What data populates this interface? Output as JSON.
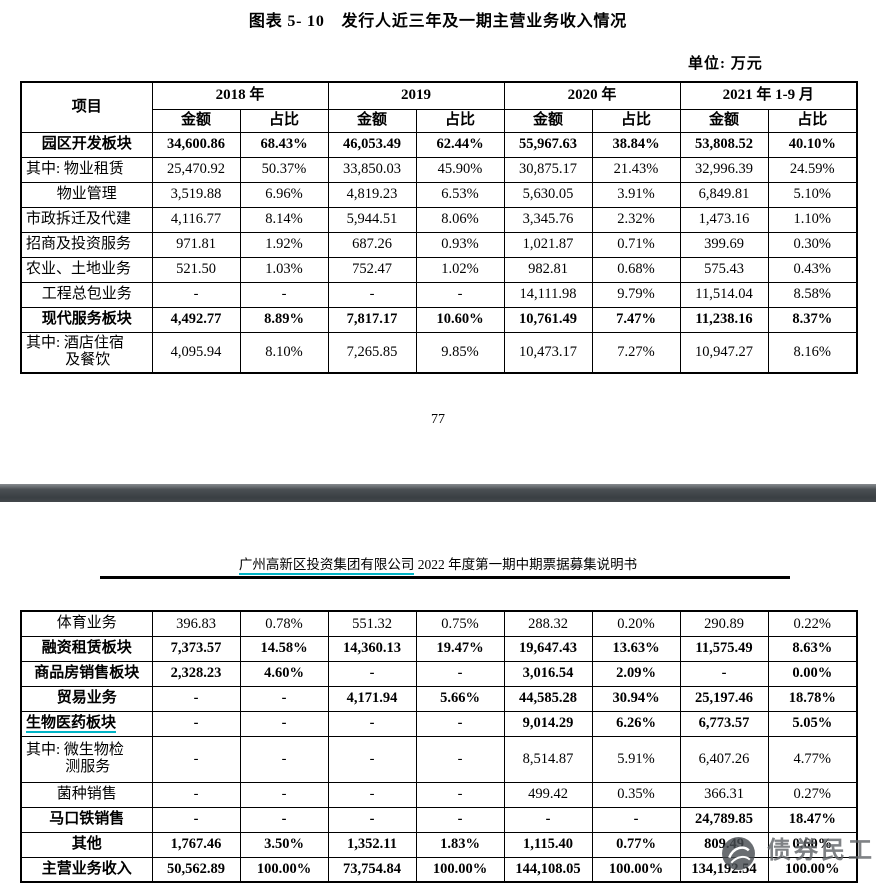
{
  "page1": {
    "title": "图表 5- 10　发行人近三年及一期主营业务收入情况",
    "unit_label": "单位: 万元",
    "page_number": "77"
  },
  "table": {
    "item_header": "项目",
    "year_headers": [
      "2018 年",
      "2019",
      "2020 年",
      "2021 年 1-9 月"
    ],
    "sub_headers": [
      "金额",
      "占比"
    ],
    "part1_rows": [
      {
        "label_lines": [
          "园区开发板块"
        ],
        "bold": true,
        "align": "center",
        "cells": [
          "34,600.86",
          "68.43%",
          "46,053.49",
          "62.44%",
          "55,967.63",
          "38.84%",
          "53,808.52",
          "40.10%"
        ]
      },
      {
        "label_lines": [
          "其中: 物业租赁"
        ],
        "bold": false,
        "align": "left",
        "cells": [
          "25,470.92",
          "50.37%",
          "33,850.03",
          "45.90%",
          "30,875.17",
          "21.43%",
          "32,996.39",
          "24.59%"
        ]
      },
      {
        "label_lines": [
          "物业管理"
        ],
        "bold": false,
        "align": "center",
        "cells": [
          "3,519.88",
          "6.96%",
          "4,819.23",
          "6.53%",
          "5,630.05",
          "3.91%",
          "6,849.81",
          "5.10%"
        ]
      },
      {
        "label_lines": [
          "市政拆迁及代建"
        ],
        "bold": false,
        "align": "left",
        "cells": [
          "4,116.77",
          "8.14%",
          "5,944.51",
          "8.06%",
          "3,345.76",
          "2.32%",
          "1,473.16",
          "1.10%"
        ]
      },
      {
        "label_lines": [
          "招商及投资服务"
        ],
        "bold": false,
        "align": "left",
        "cells": [
          "971.81",
          "1.92%",
          "687.26",
          "0.93%",
          "1,021.87",
          "0.71%",
          "399.69",
          "0.30%"
        ]
      },
      {
        "label_lines": [
          "农业、土地业务"
        ],
        "bold": false,
        "align": "left",
        "cells": [
          "521.50",
          "1.03%",
          "752.47",
          "1.02%",
          "982.81",
          "0.68%",
          "575.43",
          "0.43%"
        ]
      },
      {
        "label_lines": [
          "工程总包业务"
        ],
        "bold": false,
        "align": "center",
        "cells": [
          "-",
          "-",
          "-",
          "-",
          "14,111.98",
          "9.79%",
          "11,514.04",
          "8.58%"
        ]
      },
      {
        "label_lines": [
          "现代服务板块"
        ],
        "bold": true,
        "align": "center",
        "cells": [
          "4,492.77",
          "8.89%",
          "7,817.17",
          "10.60%",
          "10,761.49",
          "7.47%",
          "11,238.16",
          "8.37%"
        ]
      },
      {
        "label_lines": [
          "其中: 酒店住宿",
          "及餐饮"
        ],
        "bold": false,
        "align": "left",
        "tall": true,
        "cells": [
          "4,095.94",
          "8.10%",
          "7,265.85",
          "9.85%",
          "10,473.17",
          "7.27%",
          "10,947.27",
          "8.16%"
        ]
      }
    ],
    "part2_rows": [
      {
        "label_lines": [
          "体育业务"
        ],
        "bold": false,
        "align": "center",
        "cells": [
          "396.83",
          "0.78%",
          "551.32",
          "0.75%",
          "288.32",
          "0.20%",
          "290.89",
          "0.22%"
        ]
      },
      {
        "label_lines": [
          "融资租赁板块"
        ],
        "bold": true,
        "align": "center",
        "cells": [
          "7,373.57",
          "14.58%",
          "14,360.13",
          "19.47%",
          "19,647.43",
          "13.63%",
          "11,575.49",
          "8.63%"
        ]
      },
      {
        "label_lines": [
          "商品房销售板块"
        ],
        "bold": true,
        "align": "center",
        "cells": [
          "2,328.23",
          "4.60%",
          "-",
          "-",
          "3,016.54",
          "2.09%",
          "-",
          "0.00%"
        ]
      },
      {
        "label_lines": [
          "贸易业务"
        ],
        "bold": true,
        "align": "center",
        "cells": [
          "-",
          "-",
          "4,171.94",
          "5.66%",
          "44,585.28",
          "30.94%",
          "25,197.46",
          "18.78%"
        ]
      },
      {
        "label_lines": [
          "生物医药板块"
        ],
        "bold": true,
        "align": "left",
        "underline": true,
        "cells": [
          "-",
          "-",
          "-",
          "-",
          "9,014.29",
          "6.26%",
          "6,773.57",
          "5.05%"
        ]
      },
      {
        "label_lines": [
          "其中: 微生物检",
          "测服务"
        ],
        "bold": false,
        "align": "left",
        "tall": true,
        "cells": [
          "-",
          "-",
          "-",
          "-",
          "8,514.87",
          "5.91%",
          "6,407.26",
          "4.77%"
        ]
      },
      {
        "label_lines": [
          "菌种销售"
        ],
        "bold": false,
        "align": "center",
        "cells": [
          "-",
          "-",
          "-",
          "-",
          "499.42",
          "0.35%",
          "366.31",
          "0.27%"
        ]
      },
      {
        "label_lines": [
          "马口铁销售"
        ],
        "bold": true,
        "align": "center",
        "cells": [
          "-",
          "-",
          "-",
          "-",
          "-",
          "-",
          "24,789.85",
          "18.47%"
        ]
      },
      {
        "label_lines": [
          "其他"
        ],
        "bold": true,
        "align": "center",
        "cells": [
          "1,767.46",
          "3.50%",
          "1,352.11",
          "1.83%",
          "1,115.40",
          "0.77%",
          "809.49",
          "0.60%"
        ]
      },
      {
        "label_lines": [
          "主营业务收入"
        ],
        "bold": true,
        "align": "center",
        "cells": [
          "50,562.89",
          "100.00%",
          "73,754.84",
          "100.00%",
          "144,108.05",
          "100.00%",
          "134,192.54",
          "100.00%"
        ]
      }
    ]
  },
  "page2": {
    "company": "广州高新区投资集团有限公司",
    "header_rest": " 2022 年度第一期中期票据募集说明书"
  },
  "watermark": {
    "text": "债券民工"
  },
  "colors": {
    "link_underline": "#00b4c6",
    "divider_bar": "#3d4246"
  }
}
